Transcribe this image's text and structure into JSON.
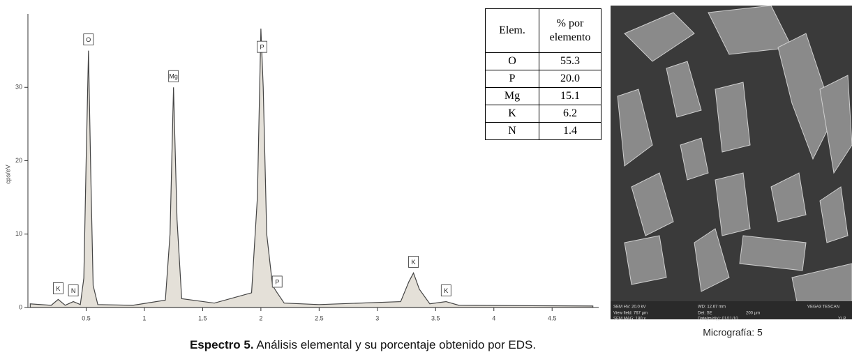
{
  "chart_data": {
    "type": "area",
    "y_label": "cps/eV",
    "x": [
      0.02,
      0.2,
      0.26,
      0.32,
      0.39,
      0.45,
      0.48,
      0.5,
      0.52,
      0.54,
      0.56,
      0.6,
      0.9,
      1.18,
      1.22,
      1.25,
      1.28,
      1.32,
      1.6,
      1.92,
      1.97,
      2.0,
      2.02,
      2.05,
      2.1,
      2.14,
      2.2,
      2.5,
      3.2,
      3.27,
      3.31,
      3.36,
      3.45,
      3.59,
      3.7,
      4.85
    ],
    "values": [
      0.5,
      0.3,
      1.1,
      0.3,
      0.8,
      0.4,
      4,
      20,
      35,
      18,
      3,
      0.4,
      0.3,
      1,
      10,
      30,
      12,
      1.2,
      0.6,
      2,
      15,
      38,
      30,
      10,
      3,
      2,
      0.6,
      0.4,
      0.8,
      3.5,
      4.7,
      2.5,
      0.5,
      0.8,
      0.3,
      0.2
    ],
    "color": "#e4e0d8",
    "xlim": [
      0,
      4.9
    ],
    "ylim": [
      0,
      40
    ],
    "xticks": [
      0.5,
      1,
      1.5,
      2,
      2.5,
      3,
      3.5,
      4,
      4.5
    ],
    "yticks": [
      0,
      10,
      20,
      30
    ],
    "peak_labels": [
      {
        "label": "K",
        "x": 0.26
      },
      {
        "label": "N",
        "x": 0.39
      },
      {
        "label": "O",
        "x": 0.52
      },
      {
        "label": "Mg",
        "x": 1.25
      },
      {
        "label": "P",
        "x": 2.01
      },
      {
        "label": "P",
        "x": 2.14
      },
      {
        "label": "K",
        "x": 3.31
      },
      {
        "label": "K",
        "x": 3.59
      }
    ],
    "caption": {
      "label": "Espectro 5.",
      "text": "Análisis elemental y su porcentaje obtenido por EDS."
    }
  },
  "table": {
    "header": [
      "Elem.",
      "% por elemento"
    ],
    "rows": [
      [
        "O",
        "55.3"
      ],
      [
        "P",
        "20.0"
      ],
      [
        "Mg",
        "15.1"
      ],
      [
        "K",
        "6.2"
      ],
      [
        "N",
        "1.4"
      ]
    ]
  },
  "micrograph": {
    "caption": "Micrografía: 5",
    "info": [
      "SEM HV: 20.0 kV",
      "WD: 12.67 mm",
      "VEGA3 TESCAN",
      "View field: 767 µm",
      "Det: SE",
      "200 µm",
      "SEM MAG: 180 x",
      "Date(m/d/y): 01/11/10",
      "YLP"
    ]
  }
}
